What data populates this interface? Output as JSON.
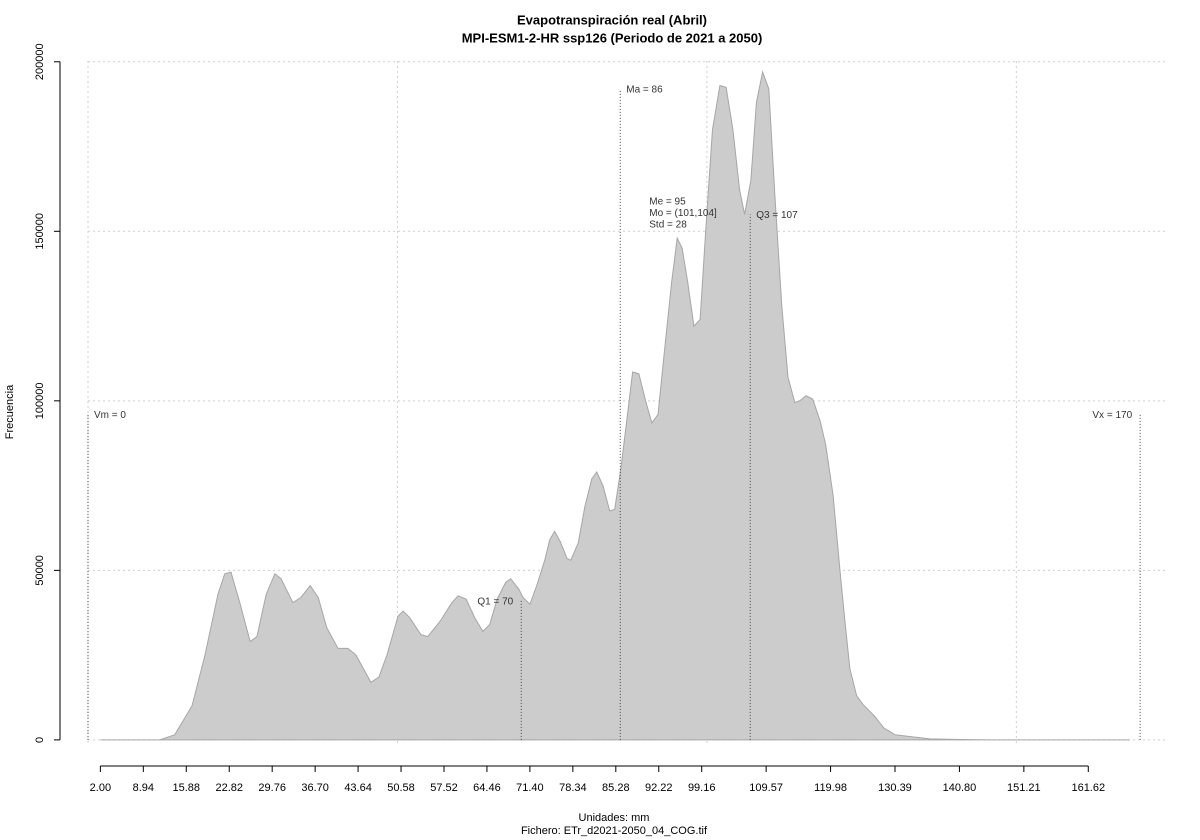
{
  "chart_data": {
    "type": "area",
    "title": "Evapotranspiración real (Abril)",
    "subtitle": "MPI-ESM1-2-HR ssp126 (Periodo de 2021 a 2050)",
    "xlabel": "Unidades: mm",
    "caption": "Fichero: ETr_d2021-2050_04_COG.tif",
    "ylabel": "Frecuencia",
    "color": "#cccccc",
    "line_color": "#a6a6a6",
    "grid": true,
    "xlim": [
      -4.2,
      174.5
    ],
    "ylim": [
      -7700,
      202000
    ],
    "yticks": [
      0,
      50000,
      100000,
      150000,
      200000
    ],
    "xgrid": [
      0,
      50,
      100,
      150
    ],
    "xticks": [
      {
        "value": 2,
        "label": "2.00"
      },
      8.94,
      15.88,
      22.82,
      29.76,
      {
        "value": 36.7,
        "label": "36.70"
      },
      43.64,
      50.58,
      57.52,
      64.46,
      {
        "value": 71.4,
        "label": "71.40"
      },
      78.34,
      85.28,
      92.22,
      99.16,
      109.57,
      119.98,
      130.39,
      {
        "value": 140.8,
        "label": "140.80"
      },
      151.21,
      161.62
    ],
    "x": [
      2,
      11.6,
      14,
      16.8,
      18.9,
      21,
      22.1,
      23.1,
      24.6,
      26.2,
      27.3,
      28.8,
      30.2,
      31.2,
      33.1,
      34.4,
      35.9,
      37.2,
      38.6,
      40.4,
      42,
      43.3,
      45.7,
      47,
      48.3,
      50.1,
      50.9,
      52,
      53.8,
      54.9,
      56.9,
      58.8,
      59.8,
      61.1,
      62.5,
      63.8,
      64.9,
      66.1,
      67.5,
      68.3,
      69.6,
      70.3,
      71.4,
      72.5,
      73.8,
      74.6,
      75.4,
      76.3,
      77.4,
      78,
      79.2,
      80.3,
      81.4,
      82.2,
      83.2,
      84.3,
      85.1,
      86.1,
      87.1,
      88,
      89,
      90.1,
      91.1,
      92.1,
      93.1,
      94.3,
      95.2,
      96,
      96.9,
      97.9,
      98.9,
      99.8,
      100.9,
      102.1,
      103.1,
      104.2,
      105.3,
      106.1,
      107.1,
      108,
      109,
      110,
      111,
      112.1,
      113.1,
      114.2,
      115,
      116,
      117.1,
      118.3,
      119.2,
      120.4,
      121.5,
      122.3,
      123.1,
      124.2,
      125.2,
      127.1,
      128.6,
      130.4,
      133.6,
      136,
      140.9,
      145.7,
      168.3
    ],
    "values": [
      0,
      0,
      1500,
      10000,
      25000,
      43000,
      49000,
      49500,
      40000,
      29000,
      30500,
      43000,
      49000,
      47500,
      40500,
      42000,
      45500,
      42000,
      33000,
      27000,
      27000,
      25000,
      17000,
      18500,
      25000,
      36500,
      38000,
      36000,
      31000,
      30500,
      35000,
      40500,
      42500,
      41500,
      36000,
      32000,
      34000,
      41500,
      46500,
      47500,
      44500,
      42000,
      40000,
      45500,
      53000,
      59000,
      61500,
      58500,
      53500,
      53000,
      58000,
      69000,
      77000,
      79000,
      75000,
      67500,
      68000,
      80000,
      95000,
      108500,
      108000,
      100000,
      93500,
      96000,
      114000,
      135000,
      148000,
      145000,
      135000,
      122000,
      124000,
      150000,
      180000,
      193000,
      192500,
      180000,
      162000,
      155000,
      165000,
      188000,
      197000,
      192000,
      160000,
      128000,
      107000,
      99500,
      100000,
      101500,
      100500,
      94000,
      87000,
      72000,
      50000,
      35000,
      21000,
      13000,
      10500,
      7000,
      3500,
      1500,
      800,
      300,
      100,
      0,
      0
    ],
    "annotations": [
      {
        "label": "Vm = 0",
        "x": 0,
        "y": 96000,
        "align": "right"
      },
      {
        "label": "Q1 = 70",
        "x": 70,
        "y": 41000,
        "align": "left"
      },
      {
        "label": "Ma = 86",
        "x": 86,
        "y": 192000,
        "align": "right"
      },
      {
        "label": "Q3 = 107",
        "x": 107,
        "y": 155000,
        "align": "right"
      },
      {
        "label": "Vx = 170",
        "x": 170,
        "y": 96000,
        "align": "left"
      }
    ],
    "stats": [
      "Me = 95",
      "Mo = (101,104]",
      "Std = 28"
    ]
  }
}
